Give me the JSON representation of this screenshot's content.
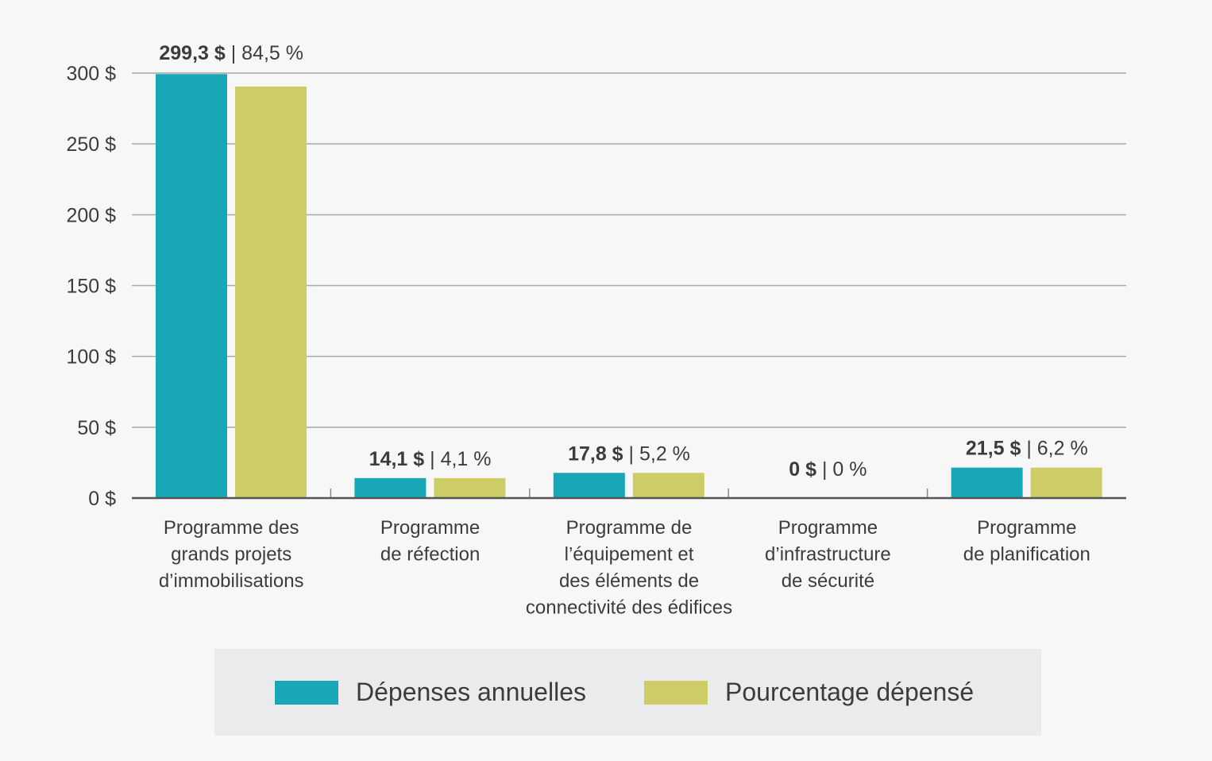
{
  "chart_data": {
    "type": "bar",
    "title": "",
    "xlabel": "",
    "ylabel": "",
    "ylim": [
      0,
      300
    ],
    "y_ticks": [
      "0 $",
      "50 $",
      "100 $",
      "150 $",
      "200 $",
      "250 $",
      "300 $"
    ],
    "y_tick_values": [
      0,
      50,
      100,
      150,
      200,
      250,
      300
    ],
    "grid": true,
    "legend_position": "bottom",
    "categories": [
      [
        "Programme des",
        "grands projets",
        "d’immobilisations"
      ],
      [
        "Programme",
        "de réfection"
      ],
      [
        "Programme de",
        "l’équipement et",
        "des éléments de",
        "connectivité des édifices"
      ],
      [
        "Programme",
        "d’infrastructure",
        "de sécurité"
      ],
      [
        "Programme",
        "de planification"
      ]
    ],
    "series": [
      {
        "name": "Dépenses annuelles",
        "color": "#17a7b6",
        "values": [
          299.3,
          14.1,
          17.8,
          0,
          21.5
        ]
      },
      {
        "name": "Pourcentage dépensé",
        "color": "#cdcc67",
        "values": [
          84.5,
          4.1,
          5.2,
          0,
          6.2
        ]
      }
    ],
    "data_labels": [
      {
        "bold": "299,3 $",
        "rest": " | 84,5 %"
      },
      {
        "bold": "14,1 $",
        "rest": " | 4,1 %"
      },
      {
        "bold": "17,8 $",
        "rest": " | 5,2 %"
      },
      {
        "bold": "0 $",
        "rest": " | 0 %"
      },
      {
        "bold": "21,5 $",
        "rest": " | 6,2 %"
      }
    ]
  },
  "legend": {
    "items": [
      {
        "label": "Dépenses annuelles",
        "color": "#17a7b6"
      },
      {
        "label": "Pourcentage dépensé",
        "color": "#cdcc67"
      }
    ]
  }
}
